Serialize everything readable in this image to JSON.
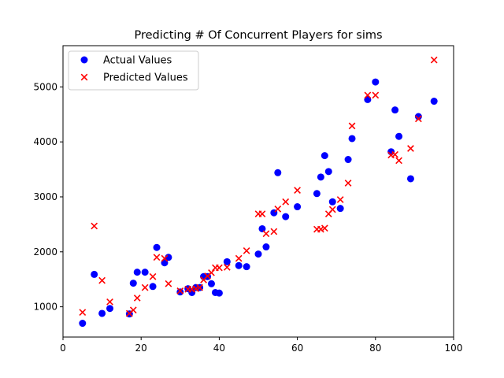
{
  "chart_data": {
    "type": "scatter",
    "title": "Predicting # Of Concurrent Players for sims",
    "xlabel": "",
    "ylabel": "",
    "xlim": [
      0,
      100
    ],
    "ylim": [
      450,
      5750
    ],
    "x_ticks": [
      0,
      20,
      40,
      60,
      80,
      100
    ],
    "y_ticks": [
      1000,
      2000,
      3000,
      4000,
      5000
    ],
    "grid": false,
    "legend_position": "top-left",
    "series": [
      {
        "name": "Actual Values",
        "marker": "circle",
        "color": "#0000ff",
        "points": [
          [
            5,
            700
          ],
          [
            8,
            1590
          ],
          [
            10,
            880
          ],
          [
            12,
            970
          ],
          [
            17,
            870
          ],
          [
            18,
            1430
          ],
          [
            19,
            1630
          ],
          [
            21,
            1630
          ],
          [
            23,
            1370
          ],
          [
            24,
            2080
          ],
          [
            26,
            1800
          ],
          [
            27,
            1900
          ],
          [
            30,
            1270
          ],
          [
            32,
            1330
          ],
          [
            33,
            1260
          ],
          [
            34,
            1350
          ],
          [
            35,
            1350
          ],
          [
            36,
            1550
          ],
          [
            37,
            1550
          ],
          [
            38,
            1420
          ],
          [
            39,
            1260
          ],
          [
            40,
            1250
          ],
          [
            42,
            1820
          ],
          [
            45,
            1750
          ],
          [
            47,
            1730
          ],
          [
            50,
            1960
          ],
          [
            51,
            2420
          ],
          [
            52,
            2090
          ],
          [
            54,
            2710
          ],
          [
            55,
            3440
          ],
          [
            57,
            2640
          ],
          [
            60,
            2820
          ],
          [
            65,
            3060
          ],
          [
            66,
            3360
          ],
          [
            67,
            3750
          ],
          [
            68,
            3460
          ],
          [
            69,
            2910
          ],
          [
            71,
            2790
          ],
          [
            73,
            3680
          ],
          [
            74,
            4060
          ],
          [
            78,
            4770
          ],
          [
            80,
            5090
          ],
          [
            84,
            3820
          ],
          [
            85,
            4580
          ],
          [
            86,
            4100
          ],
          [
            89,
            3330
          ],
          [
            91,
            4460
          ],
          [
            95,
            4740
          ]
        ]
      },
      {
        "name": "Predicted Values",
        "marker": "x",
        "color": "#ff0000",
        "points": [
          [
            5,
            900
          ],
          [
            8,
            2470
          ],
          [
            10,
            1480
          ],
          [
            12,
            1090
          ],
          [
            17,
            880
          ],
          [
            18,
            940
          ],
          [
            19,
            1160
          ],
          [
            21,
            1350
          ],
          [
            23,
            1550
          ],
          [
            24,
            1900
          ],
          [
            26,
            1880
          ],
          [
            27,
            1420
          ],
          [
            30,
            1290
          ],
          [
            32,
            1320
          ],
          [
            33,
            1320
          ],
          [
            34,
            1330
          ],
          [
            35,
            1350
          ],
          [
            36,
            1490
          ],
          [
            37,
            1560
          ],
          [
            38,
            1620
          ],
          [
            39,
            1710
          ],
          [
            40,
            1710
          ],
          [
            42,
            1720
          ],
          [
            45,
            1880
          ],
          [
            47,
            2020
          ],
          [
            50,
            2690
          ],
          [
            51,
            2690
          ],
          [
            52,
            2330
          ],
          [
            54,
            2370
          ],
          [
            55,
            2780
          ],
          [
            57,
            2910
          ],
          [
            60,
            3120
          ],
          [
            65,
            2410
          ],
          [
            66,
            2410
          ],
          [
            67,
            2430
          ],
          [
            68,
            2690
          ],
          [
            69,
            2770
          ],
          [
            71,
            2950
          ],
          [
            73,
            3250
          ],
          [
            74,
            4290
          ],
          [
            78,
            4850
          ],
          [
            80,
            4850
          ],
          [
            84,
            3760
          ],
          [
            85,
            3770
          ],
          [
            86,
            3660
          ],
          [
            89,
            3880
          ],
          [
            91,
            4420
          ],
          [
            95,
            5490
          ]
        ]
      }
    ]
  }
}
